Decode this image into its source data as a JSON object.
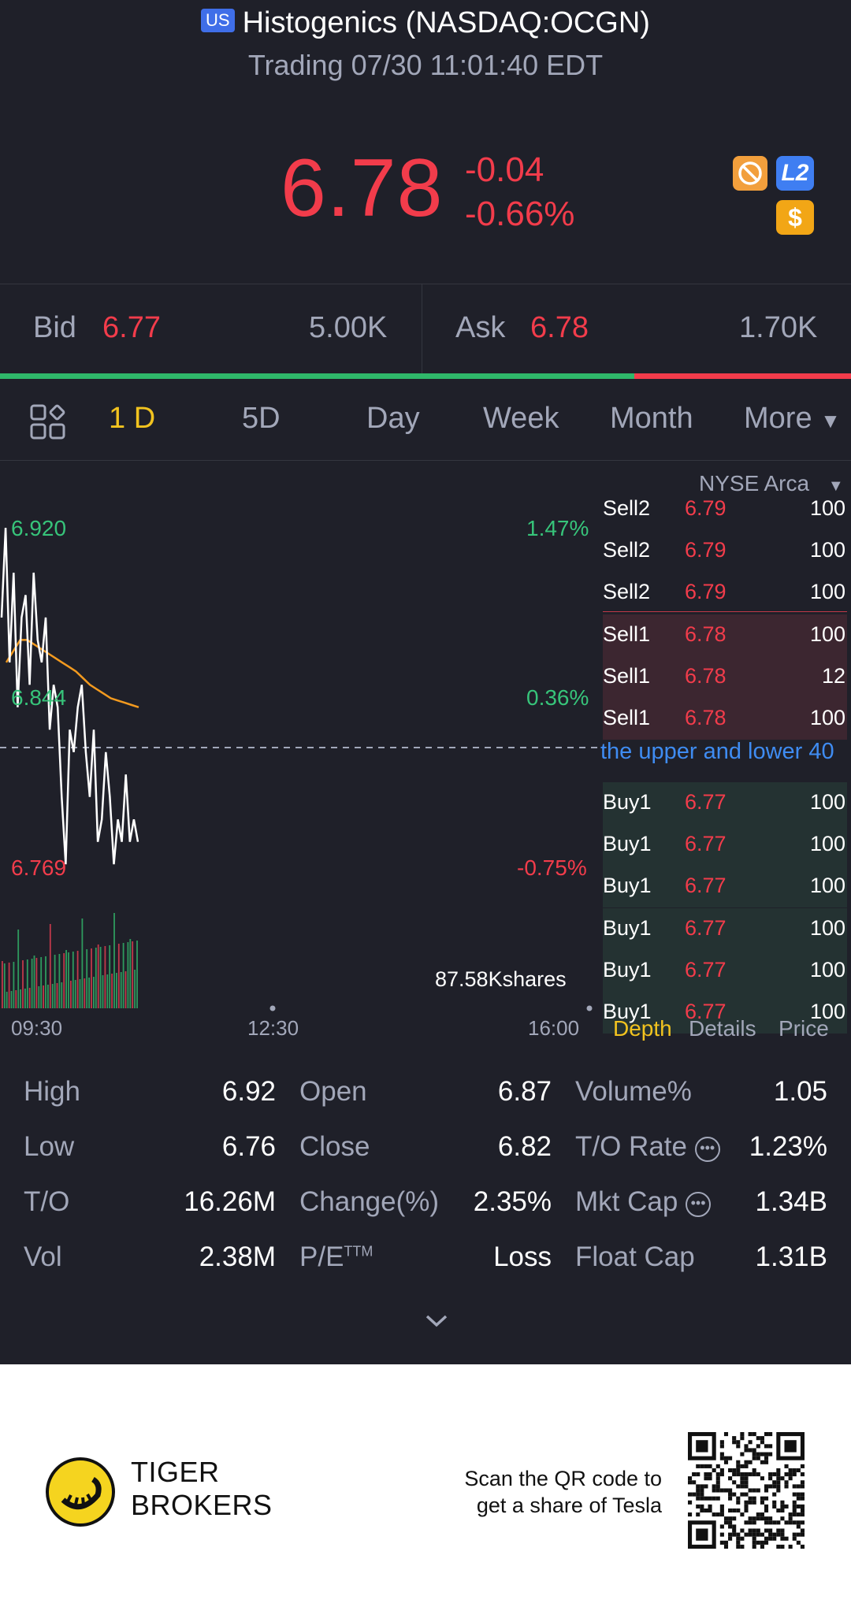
{
  "header": {
    "market_badge": "US",
    "title": "Histogenics (NASDAQ:OCGN)",
    "status": "Trading 07/30 11:01:40 EDT"
  },
  "quote": {
    "price": "6.78",
    "change": "-0.04",
    "change_pct": "-0.66%",
    "l2_label": "L2",
    "dollar_label": "$"
  },
  "bid_ask": {
    "bid_label": "Bid",
    "bid_price": "6.77",
    "bid_size": "5.00K",
    "ask_label": "Ask",
    "ask_price": "6.78",
    "ask_size": "1.70K",
    "bid_ratio": 0.745
  },
  "tabs": {
    "items": [
      "1 D",
      "5D",
      "Day",
      "Week",
      "Month",
      "More"
    ],
    "active": "1 D"
  },
  "chart": {
    "exchange": "NYSE Arca",
    "high_label": "6.920",
    "mid_label": "6.844",
    "low_label": "6.769",
    "pct_high": "1.47%",
    "pct_mid": "0.36%",
    "pct_low": "-0.75%",
    "volume_label": "87.58Kshares",
    "time_start": "09:30",
    "time_mid": "12:30",
    "time_end": "16:00"
  },
  "chart_data": {
    "type": "line",
    "series": [
      {
        "values": [
          6.88,
          6.92,
          6.86,
          6.9,
          6.84,
          6.88,
          6.89,
          6.85,
          6.9,
          6.87,
          6.86,
          6.88,
          6.83,
          6.85,
          6.84,
          6.8,
          6.77,
          6.83,
          6.82,
          6.84,
          6.85,
          6.82,
          6.8,
          6.83,
          6.78,
          6.79,
          6.82,
          6.8,
          6.77,
          6.79,
          6.78,
          6.81,
          6.78,
          6.79,
          6.78
        ]
      },
      {
        "values": [
          6.86,
          6.865,
          6.87,
          6.87,
          6.868,
          6.866,
          6.864,
          6.862,
          6.86,
          6.858,
          6.856,
          6.853,
          6.85,
          6.848,
          6.846,
          6.844,
          6.843,
          6.842,
          6.841,
          6.84
        ]
      }
    ],
    "ylim": [
      6.769,
      6.92
    ]
  },
  "depth": {
    "rows": [
      {
        "name": "Sell2",
        "price": "6.79",
        "qty": "100",
        "side": "sell2"
      },
      {
        "name": "Sell2",
        "price": "6.79",
        "qty": "100",
        "side": "sell2"
      },
      {
        "name": "Sell2",
        "price": "6.79",
        "qty": "100",
        "side": "sell2"
      },
      {
        "name": "Sell1",
        "price": "6.78",
        "qty": "100",
        "side": "sell1"
      },
      {
        "name": "Sell1",
        "price": "6.78",
        "qty": "12",
        "side": "sell1"
      },
      {
        "name": "Sell1",
        "price": "6.78",
        "qty": "100",
        "side": "sell1"
      },
      {
        "name": "Buy1",
        "price": "6.77",
        "qty": "100",
        "side": "buy1"
      },
      {
        "name": "Buy1",
        "price": "6.77",
        "qty": "100",
        "side": "buy1"
      },
      {
        "name": "Buy1",
        "price": "6.77",
        "qty": "100",
        "side": "buy1"
      },
      {
        "name": "Buy1",
        "price": "6.77",
        "qty": "100",
        "side": "buy1"
      },
      {
        "name": "Buy1",
        "price": "6.77",
        "qty": "100",
        "side": "buy1"
      },
      {
        "name": "Buy1",
        "price": "6.77",
        "qty": "100",
        "side": "buy1"
      }
    ],
    "banner": "the upper and lower 40",
    "tabs": [
      "Depth",
      "Details",
      "Price"
    ]
  },
  "stats": {
    "high_label": "High",
    "high": "6.92",
    "low_label": "Low",
    "low": "6.76",
    "to_label": "T/O",
    "to": "16.26M",
    "vol_label": "Vol",
    "vol": "2.38M",
    "open_label": "Open",
    "open": "6.87",
    "close_label": "Close",
    "close": "6.82",
    "change_label": "Change(%)",
    "change": "2.35%",
    "pe_label": "P/E",
    "pe_sup": "TTM",
    "pe": "Loss",
    "volpct_label": "Volume%",
    "volpct": "1.05",
    "torate_label": "T/O Rate",
    "torate": "1.23%",
    "mktcap_label": "Mkt Cap",
    "mktcap": "1.34B",
    "floatcap_label": "Float Cap",
    "floatcap": "1.31B"
  },
  "footer": {
    "brand_line1": "TIGER",
    "brand_line2": "BROKERS",
    "scan_line1": "Scan the QR code to",
    "scan_line2": "get a share of Tesla"
  },
  "colors": {
    "up": "#37c47a",
    "down": "#f23c4b",
    "accent": "#f2c31f",
    "background": "#1f2029"
  }
}
